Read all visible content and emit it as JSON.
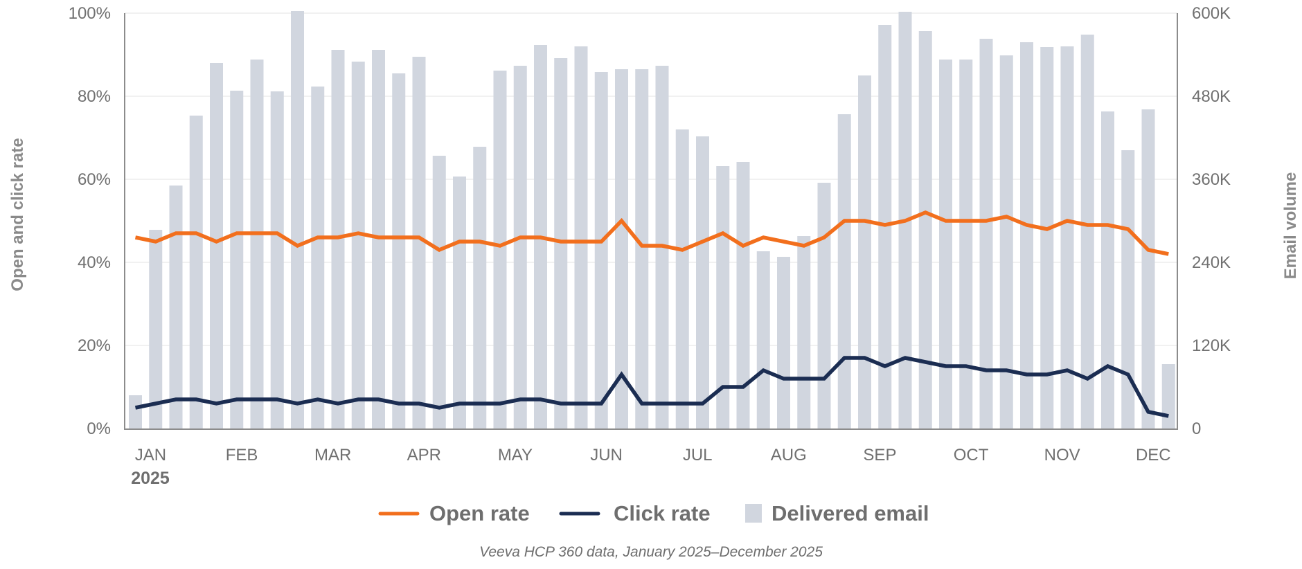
{
  "chart_data": {
    "type": "bar+line",
    "title": "",
    "xlabel": "",
    "ylabel_left": "Open and click rate",
    "ylabel_right": "Email volume",
    "ylim_left": [
      0,
      100
    ],
    "ylim_right": [
      0,
      600000
    ],
    "yticks_left": [
      "0%",
      "20%",
      "40%",
      "60%",
      "80%",
      "100%"
    ],
    "yticks_right": [
      "0",
      "120K",
      "240K",
      "360K",
      "480K",
      "600K"
    ],
    "month_labels": [
      "JAN",
      "FEB",
      "MAR",
      "APR",
      "MAY",
      "JUN",
      "JUL",
      "AUG",
      "SEP",
      "OCT",
      "NOV",
      "DEC"
    ],
    "month_start_weeks": [
      1,
      5.5,
      10,
      14.5,
      19,
      23.5,
      28,
      32.5,
      37,
      41.5,
      46,
      50.5
    ],
    "year_label": "2025",
    "grid": true,
    "legend_position": "bottom-center",
    "x": [
      1,
      2,
      3,
      4,
      5,
      6,
      7,
      8,
      9,
      10,
      11,
      12,
      13,
      14,
      15,
      16,
      17,
      18,
      19,
      20,
      21,
      22,
      23,
      24,
      25,
      26,
      27,
      28,
      29,
      30,
      31,
      32,
      33,
      34,
      35,
      36,
      37,
      38,
      39,
      40,
      41,
      42,
      43,
      44,
      45,
      46,
      47,
      48,
      49,
      50,
      51,
      52
    ],
    "series": [
      {
        "name": "Delivered email",
        "type": "bar",
        "axis": "right",
        "color": "#d1d6df",
        "values": [
          48000,
          287000,
          351000,
          452000,
          528000,
          488000,
          533000,
          487000,
          603000,
          494000,
          547000,
          530000,
          547000,
          513000,
          537000,
          394000,
          364000,
          407000,
          517000,
          524000,
          554000,
          535000,
          552000,
          515000,
          519000,
          519000,
          524000,
          432000,
          422000,
          379000,
          385000,
          256000,
          248000,
          278000,
          355000,
          454000,
          510000,
          583000,
          602000,
          574000,
          533000,
          533000,
          563000,
          539000,
          558000,
          551000,
          552000,
          569000,
          458000,
          402000,
          461000,
          93000
        ]
      },
      {
        "name": "Open rate",
        "type": "line",
        "axis": "left",
        "color": "#f26f1d",
        "values": [
          46,
          45,
          47,
          47,
          45,
          47,
          47,
          47,
          44,
          46,
          46,
          47,
          46,
          46,
          46,
          43,
          45,
          45,
          44,
          46,
          46,
          45,
          45,
          45,
          50,
          44,
          44,
          43,
          45,
          47,
          44,
          46,
          45,
          44,
          46,
          50,
          50,
          49,
          50,
          52,
          50,
          50,
          50,
          51,
          49,
          48,
          50,
          49,
          49,
          48,
          43,
          42
        ]
      },
      {
        "name": "Click rate",
        "type": "line",
        "axis": "left",
        "color": "#1b2d52",
        "values": [
          5,
          6,
          7,
          7,
          6,
          7,
          7,
          7,
          6,
          7,
          6,
          7,
          7,
          6,
          6,
          5,
          6,
          6,
          6,
          7,
          7,
          6,
          6,
          6,
          13,
          6,
          6,
          6,
          6,
          10,
          10,
          14,
          12,
          12,
          12,
          17,
          17,
          15,
          17,
          16,
          15,
          15,
          14,
          14,
          13,
          13,
          14,
          12,
          15,
          13,
          4,
          3
        ]
      }
    ],
    "legend": [
      {
        "label": "Open rate",
        "symbol": "line",
        "color": "#f26f1d"
      },
      {
        "label": "Click rate",
        "symbol": "line",
        "color": "#1b2d52"
      },
      {
        "label": "Delivered email",
        "symbol": "square",
        "color": "#d1d6df"
      }
    ],
    "annotation": "Veeva HCP 360 data, January 2025–December 2025"
  }
}
